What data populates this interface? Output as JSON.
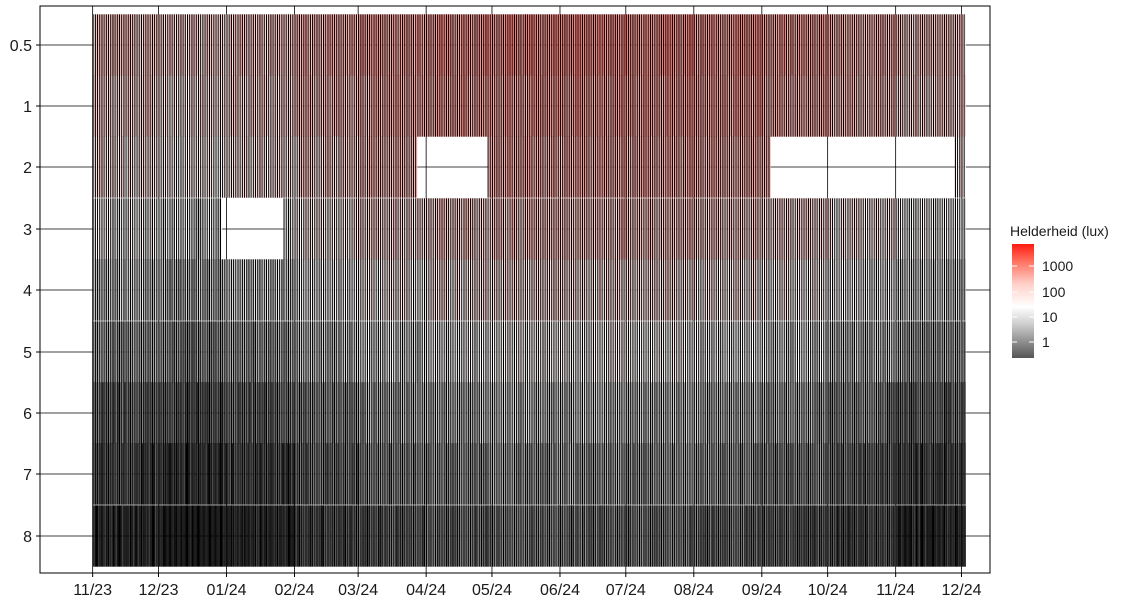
{
  "chart_data": {
    "type": "heatmap",
    "title": "",
    "xlabel": "",
    "ylabel": "",
    "x_tick_labels": [
      "11/23",
      "12/23",
      "01/24",
      "02/24",
      "03/24",
      "04/24",
      "05/24",
      "06/24",
      "07/24",
      "08/24",
      "09/24",
      "10/24",
      "11/24",
      "12/24"
    ],
    "x_range": [
      "2023-10-08",
      "2024-12-14"
    ],
    "y_tick_labels": [
      "0.5",
      "1",
      "2",
      "3",
      "4",
      "5",
      "6",
      "7",
      "8"
    ],
    "y_levels": [
      0.5,
      1,
      2,
      3,
      4,
      5,
      6,
      7,
      8
    ],
    "y_reversed": true,
    "grid": true,
    "legend": {
      "title": "Helderheid (lux)",
      "placement": "right",
      "scale": "log10",
      "labels": [
        "1000",
        "100",
        "10",
        "1"
      ],
      "values": [
        1000,
        100,
        10,
        1
      ],
      "colors": {
        "low": "#000000",
        "mid": "#ffffff",
        "high": "#ff0000"
      }
    },
    "missing_periods": [
      {
        "depth": 3,
        "from": "2023-12-30",
        "to": "2024-01-26"
      },
      {
        "depth": 2,
        "from": "2024-03-28",
        "to": "2024-04-28"
      },
      {
        "depth": 2,
        "from": "2024-09-05",
        "to": "2024-11-27"
      }
    ],
    "data_extent": {
      "from": "2023-11-01",
      "to": "2024-12-02"
    }
  }
}
